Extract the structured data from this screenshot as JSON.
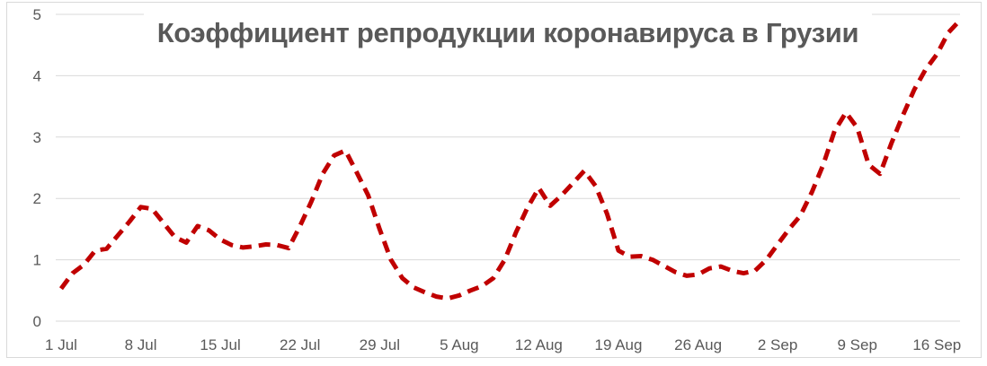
{
  "chart_data": {
    "type": "line",
    "title": "Коэффициент репродукции коронавируса в Грузии",
    "xlabel": "",
    "ylabel": "",
    "ylim": [
      0,
      5
    ],
    "y_ticks": [
      0,
      1,
      2,
      3,
      4,
      5
    ],
    "grid": true,
    "legend": "none",
    "line_style": "dashed",
    "x_tick_labels": [
      "1 Jul",
      "8 Jul",
      "15 Jul",
      "22 Jul",
      "29 Jul",
      "5 Aug",
      "12 Aug",
      "19 Aug",
      "26 Aug",
      "2 Sep",
      "9 Sep",
      "16 Sep"
    ],
    "categories": [
      "1 Jul",
      "2 Jul",
      "3 Jul",
      "4 Jul",
      "5 Jul",
      "6 Jul",
      "7 Jul",
      "8 Jul",
      "9 Jul",
      "10 Jul",
      "11 Jul",
      "12 Jul",
      "13 Jul",
      "14 Jul",
      "15 Jul",
      "16 Jul",
      "17 Jul",
      "18 Jul",
      "19 Jul",
      "20 Jul",
      "21 Jul",
      "22 Jul",
      "23 Jul",
      "24 Jul",
      "25 Jul",
      "26 Jul",
      "27 Jul",
      "28 Jul",
      "29 Jul",
      "30 Jul",
      "31 Jul",
      "1 Aug",
      "2 Aug",
      "3 Aug",
      "4 Aug",
      "5 Aug",
      "6 Aug",
      "7 Aug",
      "8 Aug",
      "9 Aug",
      "10 Aug",
      "11 Aug",
      "12 Aug",
      "13 Aug",
      "14 Aug",
      "15 Aug",
      "16 Aug",
      "17 Aug",
      "18 Aug",
      "19 Aug",
      "20 Aug",
      "21 Aug",
      "22 Aug",
      "23 Aug",
      "24 Aug",
      "25 Aug",
      "26 Aug",
      "27 Aug",
      "28 Aug",
      "29 Aug",
      "30 Aug",
      "31 Aug",
      "1 Sep",
      "2 Sep",
      "3 Sep",
      "4 Sep",
      "5 Sep",
      "6 Sep",
      "7 Sep",
      "8 Sep",
      "9 Sep",
      "10 Sep",
      "11 Sep",
      "12 Sep",
      "13 Sep",
      "14 Sep",
      "15 Sep",
      "16 Sep",
      "17 Sep",
      "18 Sep"
    ],
    "values": [
      0.53,
      0.78,
      0.92,
      1.15,
      1.18,
      1.4,
      1.62,
      1.86,
      1.83,
      1.6,
      1.37,
      1.28,
      1.55,
      1.48,
      1.33,
      1.24,
      1.2,
      1.22,
      1.25,
      1.24,
      1.19,
      1.55,
      1.95,
      2.4,
      2.7,
      2.78,
      2.42,
      2.05,
      1.5,
      1.0,
      0.7,
      0.55,
      0.47,
      0.4,
      0.37,
      0.42,
      0.5,
      0.57,
      0.7,
      1.0,
      1.45,
      1.85,
      2.17,
      1.88,
      2.05,
      2.25,
      2.45,
      2.2,
      1.75,
      1.15,
      1.05,
      1.06,
      1.0,
      0.9,
      0.8,
      0.74,
      0.76,
      0.86,
      0.89,
      0.82,
      0.78,
      0.82,
      1.0,
      1.25,
      1.5,
      1.72,
      2.1,
      2.55,
      3.1,
      3.4,
      3.15,
      2.55,
      2.4,
      2.9,
      3.35,
      3.77,
      4.1,
      4.35,
      4.7,
      4.9
    ],
    "colors": {
      "line": "#C00000",
      "gridline": "#D9D9D9",
      "frame_border": "#D9D9D9",
      "axis_text": "#595959",
      "title_text": "#595959",
      "background": "#FFFFFF"
    }
  }
}
